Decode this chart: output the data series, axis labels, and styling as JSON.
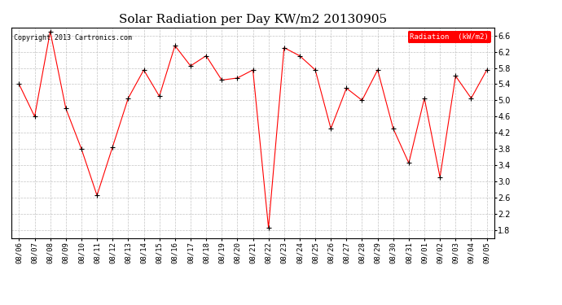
{
  "title": "Solar Radiation per Day KW/m2 20130905",
  "copyright": "Copyright 2013 Cartronics.com",
  "legend_label": "Radiation  (kW/m2)",
  "dates": [
    "08/06",
    "08/07",
    "08/08",
    "08/09",
    "08/10",
    "08/11",
    "08/12",
    "08/13",
    "08/14",
    "08/15",
    "08/16",
    "08/17",
    "08/18",
    "08/19",
    "08/20",
    "08/21",
    "08/22",
    "08/23",
    "08/24",
    "08/25",
    "08/26",
    "08/27",
    "08/28",
    "08/29",
    "08/30",
    "08/31",
    "09/01",
    "09/02",
    "09/03",
    "09/04",
    "09/05"
  ],
  "values": [
    5.4,
    4.6,
    6.7,
    4.8,
    3.8,
    2.65,
    3.85,
    5.05,
    5.75,
    5.1,
    6.35,
    5.85,
    6.1,
    5.5,
    5.55,
    5.75,
    1.85,
    6.3,
    6.1,
    5.75,
    4.3,
    5.3,
    5.0,
    5.75,
    4.3,
    3.45,
    5.05,
    3.1,
    5.6,
    5.05,
    5.75
  ],
  "ylim": [
    1.6,
    6.8
  ],
  "yticks": [
    1.8,
    2.2,
    2.6,
    3.0,
    3.4,
    3.8,
    4.2,
    4.6,
    5.0,
    5.4,
    5.8,
    6.2,
    6.6
  ],
  "line_color": "red",
  "marker_color": "black",
  "bg_color": "#ffffff",
  "plot_bg_color": "#ffffff",
  "grid_color": "#aaaaaa",
  "title_fontsize": 11,
  "tick_fontsize": 6.5,
  "ytick_fontsize": 7,
  "copyright_fontsize": 6,
  "legend_fontsize": 6.5,
  "legend_bg": "red",
  "legend_text_color": "white",
  "border_color": "#000000"
}
